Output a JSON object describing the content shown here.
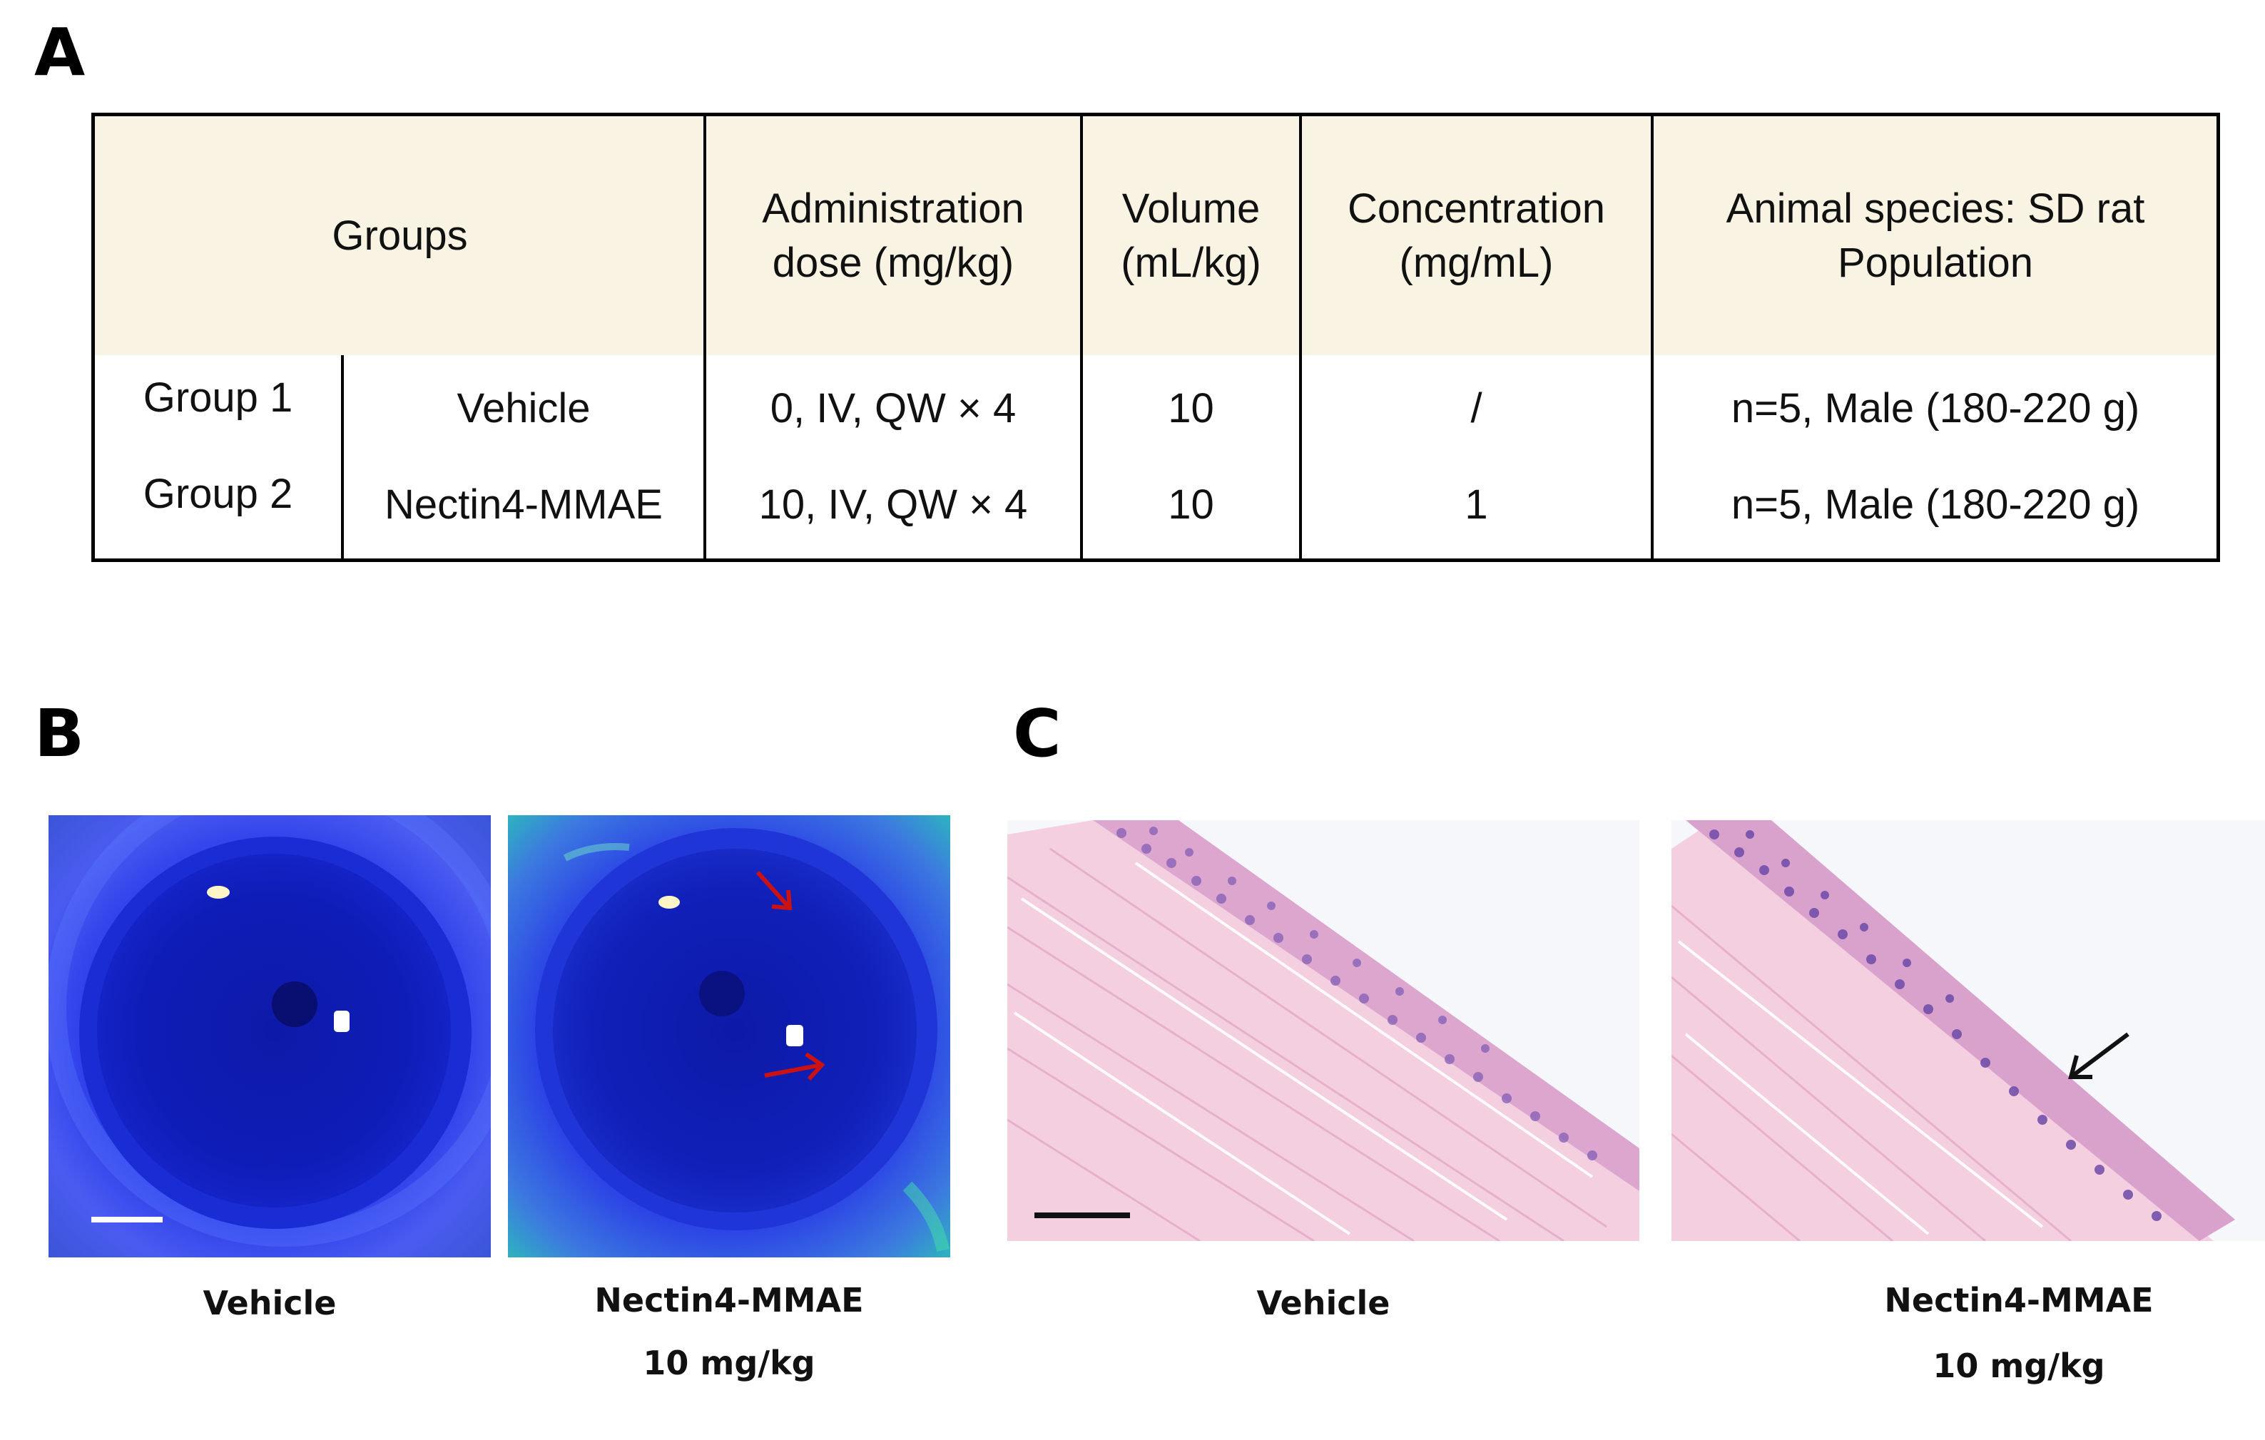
{
  "panels": {
    "a": "A",
    "b": "B",
    "c": "C"
  },
  "table": {
    "headers": {
      "groups": "Groups",
      "dose": "Administration\ndose (mg/kg)",
      "volume": "Volume\n(mL/kg)",
      "concentration": "Concentration\n(mg/mL)",
      "population": "Animal species: SD rat\nPopulation"
    },
    "rows": [
      {
        "group": "Group 1",
        "article": "Vehicle",
        "dose": "0,  IV,  QW × 4",
        "volume": "10",
        "concentration": "/",
        "population": "n=5,  Male  (180-220 g)"
      },
      {
        "group": "Group 2",
        "article": "Nectin4-MMAE",
        "dose": "10, IV, QW × 4",
        "volume": "10",
        "concentration": "1",
        "population": "n=5,  Male (180-220 g)"
      }
    ]
  },
  "panel_b": {
    "left_caption": "Vehicle",
    "right_caption_line1": "Nectin4-MMAE",
    "right_caption_line2": "10 mg/kg"
  },
  "panel_c": {
    "left_caption": "Vehicle",
    "right_caption_line1": "Nectin4-MMAE",
    "right_caption_line2": "10 mg/kg"
  },
  "colors": {
    "header_bg": "#f8f3e3",
    "arrow_red": "#cc1111",
    "stain_pink": "#f2c9dc",
    "nuclei": "#8a63b8",
    "eye_blue": "#1a2bd6"
  }
}
